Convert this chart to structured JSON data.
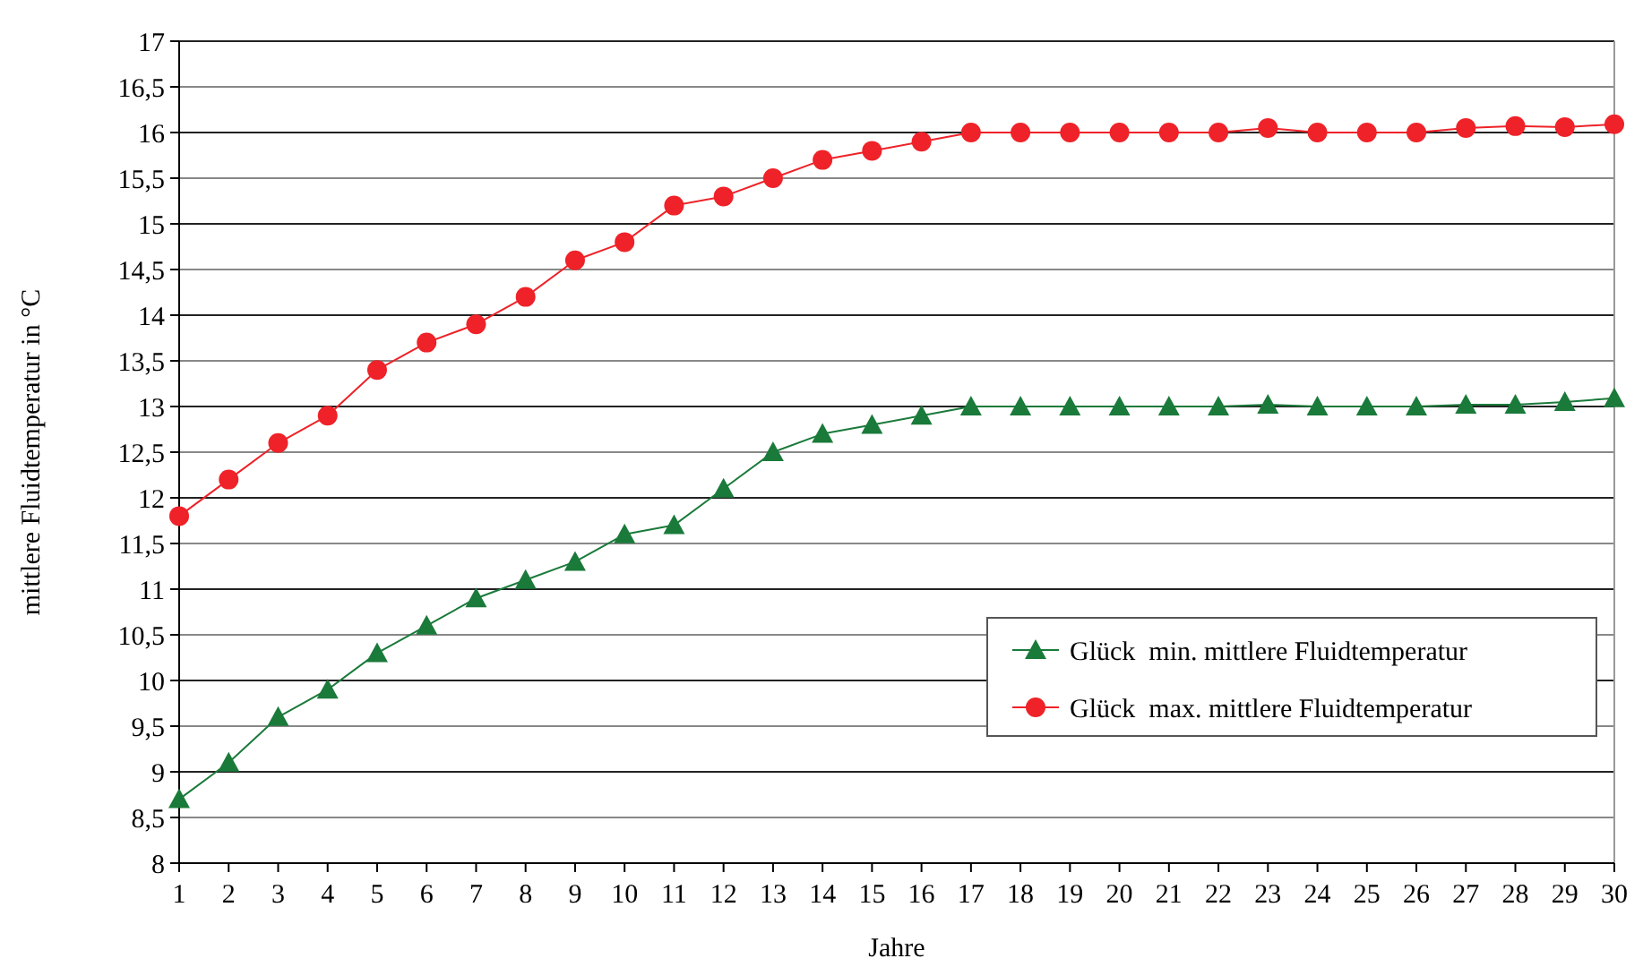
{
  "chart_data": {
    "type": "line",
    "xlabel": "Jahre",
    "ylabel": "mittlere Fluidtemperatur in °C",
    "x": [
      1,
      2,
      3,
      4,
      5,
      6,
      7,
      8,
      9,
      10,
      11,
      12,
      13,
      14,
      15,
      16,
      17,
      18,
      19,
      20,
      21,
      22,
      23,
      24,
      25,
      26,
      27,
      28,
      29,
      30
    ],
    "xlim": [
      1,
      30
    ],
    "xticks": [
      1,
      2,
      3,
      4,
      5,
      6,
      7,
      8,
      9,
      10,
      11,
      12,
      13,
      14,
      15,
      16,
      17,
      18,
      19,
      20,
      21,
      22,
      23,
      24,
      25,
      26,
      27,
      28,
      29,
      30
    ],
    "ylim": [
      8,
      17
    ],
    "yticks": [
      8,
      {
        "value": 8.5,
        "label": "8,5"
      },
      9,
      {
        "value": 9.5,
        "label": "9,5"
      },
      10,
      {
        "value": 10.5,
        "label": "10,5"
      },
      11,
      {
        "value": 11.5,
        "label": "11,5"
      },
      12,
      {
        "value": 12.5,
        "label": "12,5"
      },
      13,
      {
        "value": 13.5,
        "label": "13,5"
      },
      14,
      {
        "value": 14.5,
        "label": "14,5"
      },
      15,
      {
        "value": 15.5,
        "label": "15,5"
      },
      16,
      {
        "value": 16.5,
        "label": "16,5"
      },
      17
    ],
    "grid": "y",
    "legend": "right",
    "series": [
      {
        "name": "Glück  min. mittlere Fluidtemperatur",
        "color": "#1a7a3a",
        "marker": "triangle",
        "values": [
          8.7,
          9.1,
          9.6,
          9.9,
          10.3,
          10.6,
          10.9,
          11.1,
          11.3,
          11.6,
          11.7,
          12.1,
          12.5,
          12.7,
          12.8,
          12.9,
          13,
          13,
          13,
          13,
          13,
          13,
          13.02,
          13,
          13,
          13,
          13.02,
          13.02,
          13.05,
          13.09
        ]
      },
      {
        "name": "Glück  max. mittlere Fluidtemperatur",
        "color": "#ee2228",
        "marker": "circle",
        "values": [
          11.8,
          12.2,
          12.6,
          12.9,
          13.4,
          13.7,
          13.9,
          14.2,
          14.6,
          14.8,
          15.2,
          15.3,
          15.5,
          15.7,
          15.8,
          15.9,
          16,
          16,
          16,
          16,
          16,
          16,
          16.05,
          16,
          16,
          16,
          16.05,
          16.07,
          16.06,
          16.09
        ]
      }
    ]
  }
}
